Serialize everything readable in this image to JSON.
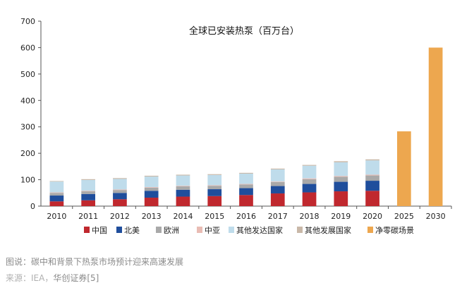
{
  "chart_data": {
    "type": "bar",
    "stacked": true,
    "title": "全球已安装热泵（百万台）",
    "xlabel": "",
    "ylabel": "",
    "ylim": [
      0,
      700
    ],
    "yticks": [
      0,
      100,
      200,
      300,
      400,
      500,
      600,
      700
    ],
    "grid": false,
    "legend_position": "bottom",
    "categories": [
      "2010",
      "2011",
      "2012",
      "2013",
      "2014",
      "2015",
      "2016",
      "2017",
      "2018",
      "2019",
      "2020",
      "2025",
      "2030"
    ],
    "series": [
      {
        "name": "中国",
        "color": "#c0282e",
        "values": [
          18,
          22,
          26,
          32,
          36,
          38,
          42,
          48,
          52,
          56,
          58,
          null,
          null
        ]
      },
      {
        "name": "北美",
        "color": "#1f4e9c",
        "values": [
          22,
          24,
          24,
          26,
          26,
          26,
          26,
          28,
          32,
          36,
          38,
          null,
          null
        ]
      },
      {
        "name": "欧洲",
        "color": "#a9a9a9",
        "values": [
          10,
          10,
          11,
          12,
          13,
          13,
          14,
          15,
          18,
          19,
          20,
          null,
          null
        ]
      },
      {
        "name": "中亚",
        "color": "#e9bcb4",
        "values": [
          2,
          2,
          2,
          2,
          2,
          2,
          2,
          2,
          3,
          3,
          3,
          null,
          null
        ]
      },
      {
        "name": "其他发达国家",
        "color": "#bfdceb",
        "values": [
          41,
          41,
          40,
          40,
          39,
          39,
          39,
          46,
          48,
          52,
          54,
          null,
          null
        ]
      },
      {
        "name": "其他发展国家",
        "color": "#c9b8a8",
        "values": [
          2,
          3,
          3,
          3,
          3,
          3,
          3,
          3,
          3,
          4,
          4,
          null,
          null
        ]
      },
      {
        "name": "净零碳场景",
        "color": "#eda74f",
        "values": [
          null,
          null,
          null,
          null,
          null,
          null,
          null,
          null,
          null,
          null,
          null,
          283,
          600
        ]
      }
    ]
  },
  "caption": {
    "text": "图说：碳中和背景下热泵市场预计迎来高速发展",
    "source_prefix": "来源：IEA，",
    "source_rest": "华创证券[5]"
  }
}
